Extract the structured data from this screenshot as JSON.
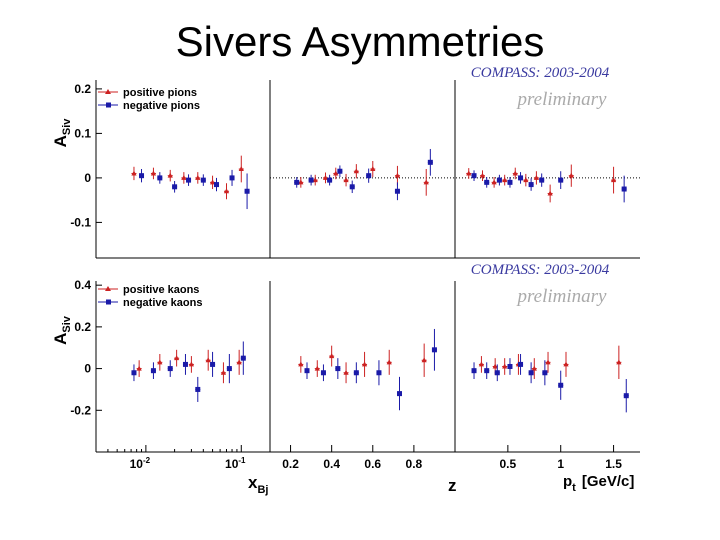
{
  "slide": {
    "title": "Sivers Asymmetries"
  },
  "colors": {
    "positive": "#cc2222",
    "negative": "#1a1aa8",
    "header": "#3a3aa0",
    "preliminary": "#aaaaaa"
  },
  "chart_data": [
    {
      "type": "scatter",
      "name": "pions",
      "header": "COMPASS: 2003-2004",
      "watermark": "preliminary",
      "ylabel_main": "A",
      "ylabel_sub": "Siv",
      "ylim": [
        -0.18,
        0.22
      ],
      "yticks": [
        0.2,
        0.1,
        0,
        -0.1
      ],
      "ytick_labels": [
        "0.2",
        "0.1",
        "0",
        "-0.1"
      ],
      "reference_line": 0,
      "legend": [
        "positive pions",
        "negative pions"
      ],
      "series": [
        {
          "name": "positive pions",
          "panels": {
            "xbj": {
              "x": [
                0.0075,
                0.012,
                0.018,
                0.025,
                0.035,
                0.05,
                0.07,
                0.1
              ],
              "y": [
                0.01,
                0.01,
                0.005,
                0.0,
                0.0,
                -0.01,
                -0.03,
                0.02
              ],
              "err": [
                0.015,
                0.013,
                0.013,
                0.013,
                0.013,
                0.015,
                0.018,
                0.03
              ]
            },
            "z": {
              "x": [
                0.25,
                0.32,
                0.37,
                0.42,
                0.47,
                0.52,
                0.6,
                0.72,
                0.86
              ],
              "y": [
                -0.01,
                -0.005,
                0.0,
                0.01,
                -0.005,
                0.015,
                0.02,
                0.005,
                -0.01
              ],
              "err": [
                0.012,
                0.012,
                0.012,
                0.013,
                0.014,
                0.016,
                0.018,
                0.022,
                0.03
              ]
            },
            "pt": {
              "x": [
                0.13,
                0.26,
                0.37,
                0.47,
                0.57,
                0.67,
                0.77,
                0.9,
                1.1,
                1.5
              ],
              "y": [
                0.01,
                0.005,
                -0.01,
                -0.005,
                0.01,
                -0.005,
                0.0,
                -0.035,
                0.005,
                -0.005
              ],
              "err": [
                0.012,
                0.012,
                0.012,
                0.012,
                0.013,
                0.014,
                0.015,
                0.02,
                0.025,
                0.03
              ]
            }
          }
        },
        {
          "name": "negative pions",
          "panels": {
            "xbj": {
              "x": [
                0.009,
                0.014,
                0.02,
                0.028,
                0.04,
                0.055,
                0.08,
                0.115
              ],
              "y": [
                0.005,
                0.0,
                -0.02,
                -0.005,
                -0.005,
                -0.015,
                0.0,
                -0.03
              ],
              "err": [
                0.015,
                0.013,
                0.013,
                0.013,
                0.013,
                0.015,
                0.018,
                0.04
              ]
            },
            "z": {
              "x": [
                0.23,
                0.3,
                0.39,
                0.44,
                0.5,
                0.58,
                0.72,
                0.88
              ],
              "y": [
                -0.01,
                -0.005,
                -0.005,
                0.015,
                -0.02,
                0.005,
                -0.03,
                0.035
              ],
              "err": [
                0.012,
                0.012,
                0.012,
                0.013,
                0.014,
                0.016,
                0.02,
                0.03
              ]
            },
            "pt": {
              "x": [
                0.18,
                0.3,
                0.42,
                0.52,
                0.62,
                0.72,
                0.82,
                1.0,
                1.6
              ],
              "y": [
                0.005,
                -0.01,
                -0.005,
                -0.01,
                0.0,
                -0.015,
                -0.005,
                -0.005,
                -0.025
              ],
              "err": [
                0.012,
                0.012,
                0.012,
                0.012,
                0.013,
                0.014,
                0.015,
                0.02,
                0.03
              ]
            }
          }
        }
      ]
    },
    {
      "type": "scatter",
      "name": "kaons",
      "header": "COMPASS: 2003-2004",
      "watermark": "preliminary",
      "ylabel_main": "A",
      "ylabel_sub": "Siv",
      "ylim": [
        -0.4,
        0.42
      ],
      "yticks": [
        0.4,
        0.2,
        0,
        -0.2
      ],
      "ytick_labels": [
        "0.4",
        "0.2",
        "0",
        "-0.2"
      ],
      "legend": [
        "positive kaons",
        "negative kaons"
      ],
      "series": [
        {
          "name": "positive kaons",
          "panels": {
            "xbj": {
              "x": [
                0.0085,
                0.014,
                0.021,
                0.03,
                0.045,
                0.065,
                0.095
              ],
              "y": [
                0.0,
                0.03,
                0.05,
                0.02,
                0.04,
                -0.02,
                0.03
              ],
              "err": [
                0.04,
                0.04,
                0.04,
                0.04,
                0.05,
                0.05,
                0.06
              ]
            },
            "z": {
              "x": [
                0.25,
                0.33,
                0.4,
                0.47,
                0.56,
                0.68,
                0.85
              ],
              "y": [
                0.02,
                0.0,
                0.06,
                -0.02,
                0.02,
                0.03,
                0.04
              ],
              "err": [
                0.04,
                0.04,
                0.05,
                0.05,
                0.06,
                0.06,
                0.08
              ]
            },
            "pt": {
              "x": [
                0.25,
                0.38,
                0.47,
                0.6,
                0.75,
                0.88,
                1.05,
                1.55
              ],
              "y": [
                0.02,
                0.01,
                0.01,
                0.02,
                0.0,
                0.03,
                0.02,
                0.03
              ],
              "err": [
                0.04,
                0.04,
                0.04,
                0.05,
                0.05,
                0.05,
                0.06,
                0.08
              ]
            }
          }
        },
        {
          "name": "negative kaons",
          "panels": {
            "xbj": {
              "x": [
                0.0075,
                0.012,
                0.018,
                0.026,
                0.035,
                0.05,
                0.075,
                0.105
              ],
              "y": [
                -0.02,
                -0.01,
                0.0,
                0.02,
                -0.1,
                0.02,
                0.0,
                0.05
              ],
              "err": [
                0.04,
                0.04,
                0.04,
                0.05,
                0.06,
                0.06,
                0.07,
                0.08
              ]
            },
            "z": {
              "x": [
                0.28,
                0.36,
                0.43,
                0.52,
                0.63,
                0.73,
                0.9
              ],
              "y": [
                -0.01,
                -0.02,
                0.0,
                -0.02,
                -0.02,
                -0.12,
                0.09
              ],
              "err": [
                0.04,
                0.04,
                0.05,
                0.05,
                0.06,
                0.08,
                0.1
              ]
            },
            "pt": {
              "x": [
                0.18,
                0.3,
                0.4,
                0.52,
                0.62,
                0.72,
                0.85,
                1.0,
                1.62
              ],
              "y": [
                -0.01,
                -0.01,
                -0.02,
                0.01,
                0.02,
                -0.02,
                -0.02,
                -0.08,
                -0.13
              ],
              "err": [
                0.04,
                0.04,
                0.04,
                0.04,
                0.05,
                0.05,
                0.06,
                0.07,
                0.08
              ]
            }
          }
        }
      ]
    }
  ],
  "x_axes": {
    "xbj": {
      "label": "x",
      "label_sub": "Bj",
      "scale": "log",
      "range": [
        0.003,
        0.2
      ],
      "ticks": [
        0.01,
        0.1
      ],
      "tick_labels": [
        "10",
        "10"
      ],
      "tick_exponents": [
        "-2",
        "-1"
      ]
    },
    "z": {
      "label": "z",
      "scale": "linear",
      "range": [
        0.1,
        1.0
      ],
      "ticks": [
        0.2,
        0.4,
        0.6,
        0.8
      ],
      "tick_labels": [
        "0.2",
        "0.4",
        "0.6",
        "0.8"
      ]
    },
    "pt": {
      "label": "p",
      "label_sub": "t",
      "label_unit": "[GeV/c]",
      "scale": "linear",
      "range": [
        0,
        1.75
      ],
      "ticks": [
        0.5,
        1,
        1.5
      ],
      "tick_labels": [
        "0.5",
        "1",
        "1.5"
      ]
    }
  }
}
